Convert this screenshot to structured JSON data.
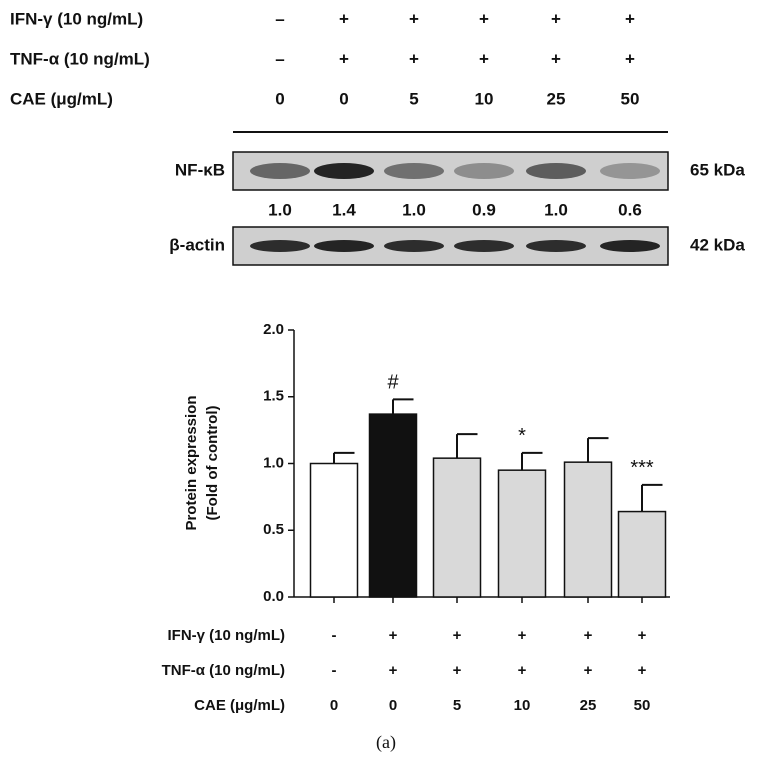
{
  "blot": {
    "treatments": [
      {
        "label": "IFN-γ (10 ng/mL)",
        "values": [
          "–",
          "+",
          "+",
          "+",
          "+",
          "+"
        ]
      },
      {
        "label": "TNF-α (10 ng/mL)",
        "values": [
          "–",
          "+",
          "+",
          "+",
          "+",
          "+"
        ]
      },
      {
        "label": "CAE (μg/mL)",
        "values": [
          "0",
          "0",
          "5",
          "10",
          "25",
          "50"
        ]
      }
    ],
    "bands": [
      {
        "label": "NF-κB",
        "size": "65 kDa",
        "ratios": [
          "1.0",
          "1.4",
          "1.0",
          "0.9",
          "1.0",
          "0.6"
        ]
      },
      {
        "label": "β-actin",
        "size": "42 kDa"
      }
    ]
  },
  "chart_data": {
    "type": "bar",
    "ylabel": [
      "Protein expression",
      "(Fold of control)"
    ],
    "categories": [
      null,
      null,
      null,
      null,
      null,
      null
    ],
    "values": [
      1.0,
      1.37,
      1.04,
      0.95,
      1.01,
      0.64
    ],
    "errors": [
      0.08,
      0.11,
      0.18,
      0.13,
      0.18,
      0.2
    ],
    "colors": [
      "#ffffff",
      "#111111",
      "#d9d9d9",
      "#d9d9d9",
      "#d9d9d9",
      "#d9d9d9"
    ],
    "annotations": [
      {
        "index": 1,
        "text": "#"
      },
      {
        "index": 3,
        "text": "*"
      },
      {
        "index": 5,
        "text": "***"
      }
    ],
    "ylim": [
      0,
      2
    ],
    "yticks": [
      {
        "value": 0,
        "label": "0.0"
      },
      {
        "value": 0.5,
        "label": "0.5"
      },
      {
        "value": 1,
        "label": "1.0"
      },
      {
        "value": 1.5,
        "label": "1.5"
      },
      {
        "value": 2,
        "label": "2.0"
      }
    ],
    "treatments": [
      {
        "label": "IFN-γ (10 ng/mL)",
        "values": [
          "-",
          "+",
          "+",
          "+",
          "+",
          "+"
        ]
      },
      {
        "label": "TNF-α (10 ng/mL)",
        "values": [
          "-",
          "+",
          "+",
          "+",
          "+",
          "+"
        ]
      },
      {
        "label": "CAE (μg/mL)",
        "values": [
          "0",
          "0",
          "5",
          "10",
          "25",
          "50"
        ]
      }
    ]
  },
  "caption": "(a)"
}
